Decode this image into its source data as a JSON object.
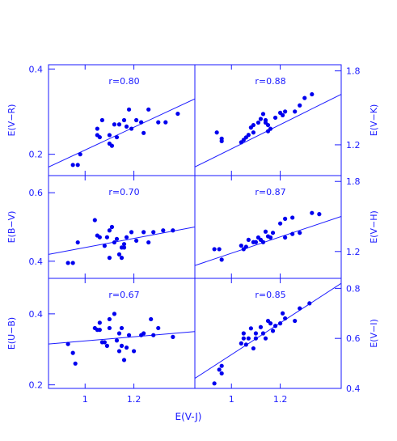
{
  "colors": {
    "axis": "#1a1aff",
    "marker": "#0000ee",
    "text": "#1a1aff"
  },
  "figure": {
    "xlabel": "E(V-J)",
    "shared_x_ticks": [
      "1",
      "1.2"
    ]
  },
  "chart_data": [
    {
      "id": "vr",
      "type": "scatter",
      "ylabel": "E(V−R)",
      "annotation": "r=0.80",
      "xlim": [
        0.85,
        1.45
      ],
      "ylim": [
        0.15,
        0.41
      ],
      "yticks": [
        {
          "v": 0.2,
          "label": "0.2"
        },
        {
          "v": 0.4,
          "label": "0.4"
        }
      ],
      "fit": [
        [
          0.85,
          0.17
        ],
        [
          1.45,
          0.33
        ]
      ],
      "points": [
        [
          0.95,
          0.175
        ],
        [
          0.97,
          0.175
        ],
        [
          0.98,
          0.2
        ],
        [
          1.05,
          0.26
        ],
        [
          1.05,
          0.245
        ],
        [
          1.06,
          0.24
        ],
        [
          1.07,
          0.28
        ],
        [
          1.1,
          0.245
        ],
        [
          1.1,
          0.225
        ],
        [
          1.11,
          0.22
        ],
        [
          1.12,
          0.27
        ],
        [
          1.13,
          0.24
        ],
        [
          1.14,
          0.27
        ],
        [
          1.16,
          0.28
        ],
        [
          1.17,
          0.265
        ],
        [
          1.18,
          0.305
        ],
        [
          1.19,
          0.26
        ],
        [
          1.21,
          0.28
        ],
        [
          1.23,
          0.275
        ],
        [
          1.24,
          0.25
        ],
        [
          1.26,
          0.305
        ],
        [
          1.3,
          0.275
        ],
        [
          1.33,
          0.275
        ],
        [
          1.38,
          0.295
        ]
      ]
    },
    {
      "id": "vk",
      "type": "scatter",
      "ylabel": "E(V−K)",
      "annotation": "r=0.88",
      "xlim": [
        0.85,
        1.45
      ],
      "ylim": [
        0.95,
        1.85
      ],
      "yticks": [
        {
          "v": 1.2,
          "label": "1.2"
        },
        {
          "v": 1.8,
          "label": "1.8"
        }
      ],
      "fit": [
        [
          0.85,
          1.02
        ],
        [
          1.45,
          1.61
        ]
      ],
      "points": [
        [
          0.94,
          1.3
        ],
        [
          0.96,
          1.25
        ],
        [
          0.96,
          1.23
        ],
        [
          1.04,
          1.22
        ],
        [
          1.05,
          1.24
        ],
        [
          1.06,
          1.26
        ],
        [
          1.07,
          1.28
        ],
        [
          1.08,
          1.34
        ],
        [
          1.09,
          1.36
        ],
        [
          1.09,
          1.3
        ],
        [
          1.11,
          1.38
        ],
        [
          1.12,
          1.41
        ],
        [
          1.13,
          1.45
        ],
        [
          1.14,
          1.4
        ],
        [
          1.14,
          1.38
        ],
        [
          1.15,
          1.36
        ],
        [
          1.15,
          1.31
        ],
        [
          1.16,
          1.33
        ],
        [
          1.18,
          1.42
        ],
        [
          1.2,
          1.46
        ],
        [
          1.21,
          1.44
        ],
        [
          1.22,
          1.47
        ],
        [
          1.26,
          1.47
        ],
        [
          1.28,
          1.52
        ],
        [
          1.3,
          1.58
        ],
        [
          1.33,
          1.61
        ]
      ]
    },
    {
      "id": "bv",
      "type": "scatter",
      "ylabel": "E(B−V)",
      "annotation": "r=0.70",
      "xlim": [
        0.85,
        1.45
      ],
      "ylim": [
        0.35,
        0.65
      ],
      "yticks": [
        {
          "v": 0.4,
          "label": "0.4"
        },
        {
          "v": 0.6,
          "label": "0.6"
        }
      ],
      "fit": [
        [
          0.85,
          0.42
        ],
        [
          1.45,
          0.5
        ]
      ],
      "points": [
        [
          0.93,
          0.395
        ],
        [
          0.95,
          0.395
        ],
        [
          0.97,
          0.455
        ],
        [
          1.04,
          0.52
        ],
        [
          1.05,
          0.475
        ],
        [
          1.06,
          0.47
        ],
        [
          1.08,
          0.445
        ],
        [
          1.09,
          0.47
        ],
        [
          1.1,
          0.49
        ],
        [
          1.1,
          0.41
        ],
        [
          1.11,
          0.5
        ],
        [
          1.12,
          0.455
        ],
        [
          1.13,
          0.465
        ],
        [
          1.14,
          0.42
        ],
        [
          1.15,
          0.44
        ],
        [
          1.15,
          0.41
        ],
        [
          1.16,
          0.45
        ],
        [
          1.16,
          0.44
        ],
        [
          1.17,
          0.47
        ],
        [
          1.19,
          0.485
        ],
        [
          1.21,
          0.46
        ],
        [
          1.24,
          0.485
        ],
        [
          1.26,
          0.455
        ],
        [
          1.28,
          0.485
        ],
        [
          1.32,
          0.49
        ],
        [
          1.36,
          0.49
        ]
      ]
    },
    {
      "id": "vh",
      "type": "scatter",
      "ylabel": "E(V−H)",
      "annotation": "r=0.87",
      "xlim": [
        0.85,
        1.45
      ],
      "ylim": [
        0.97,
        1.85
      ],
      "yticks": [
        {
          "v": 1.2,
          "label": "1.2"
        },
        {
          "v": 1.8,
          "label": "1.8"
        }
      ],
      "fit": [
        [
          0.85,
          1.08
        ],
        [
          1.45,
          1.5
        ]
      ],
      "points": [
        [
          0.93,
          1.22
        ],
        [
          0.95,
          1.22
        ],
        [
          0.96,
          1.13
        ],
        [
          1.04,
          1.25
        ],
        [
          1.05,
          1.22
        ],
        [
          1.06,
          1.24
        ],
        [
          1.07,
          1.3
        ],
        [
          1.09,
          1.28
        ],
        [
          1.1,
          1.28
        ],
        [
          1.11,
          1.32
        ],
        [
          1.12,
          1.3
        ],
        [
          1.13,
          1.28
        ],
        [
          1.14,
          1.37
        ],
        [
          1.15,
          1.33
        ],
        [
          1.16,
          1.32
        ],
        [
          1.17,
          1.36
        ],
        [
          1.2,
          1.44
        ],
        [
          1.22,
          1.48
        ],
        [
          1.22,
          1.32
        ],
        [
          1.25,
          1.35
        ],
        [
          1.25,
          1.49
        ],
        [
          1.28,
          1.36
        ],
        [
          1.33,
          1.53
        ],
        [
          1.36,
          1.52
        ]
      ]
    },
    {
      "id": "ub",
      "type": "scatter",
      "ylabel": "E(U−B)",
      "annotation": "r=0.67",
      "xlim": [
        0.85,
        1.45
      ],
      "ylim": [
        0.19,
        0.5
      ],
      "yticks": [
        {
          "v": 0.2,
          "label": "0.2"
        },
        {
          "v": 0.4,
          "label": "0.4"
        }
      ],
      "fit": [
        [
          0.85,
          0.315
        ],
        [
          1.45,
          0.35
        ]
      ],
      "points": [
        [
          0.93,
          0.315
        ],
        [
          0.95,
          0.29
        ],
        [
          0.96,
          0.26
        ],
        [
          1.04,
          0.36
        ],
        [
          1.05,
          0.355
        ],
        [
          1.06,
          0.375
        ],
        [
          1.06,
          0.355
        ],
        [
          1.07,
          0.32
        ],
        [
          1.08,
          0.32
        ],
        [
          1.09,
          0.31
        ],
        [
          1.1,
          0.36
        ],
        [
          1.1,
          0.385
        ],
        [
          1.12,
          0.4
        ],
        [
          1.13,
          0.325
        ],
        [
          1.14,
          0.345
        ],
        [
          1.14,
          0.295
        ],
        [
          1.15,
          0.36
        ],
        [
          1.15,
          0.31
        ],
        [
          1.16,
          0.27
        ],
        [
          1.17,
          0.305
        ],
        [
          1.18,
          0.34
        ],
        [
          1.2,
          0.295
        ],
        [
          1.23,
          0.34
        ],
        [
          1.24,
          0.345
        ],
        [
          1.27,
          0.385
        ],
        [
          1.28,
          0.34
        ],
        [
          1.3,
          0.36
        ],
        [
          1.36,
          0.335
        ]
      ]
    },
    {
      "id": "vi",
      "type": "scatter",
      "ylabel": "E(V−I)",
      "annotation": "r=0.85",
      "xlim": [
        0.85,
        1.45
      ],
      "ylim": [
        0.4,
        0.84
      ],
      "yticks": [
        {
          "v": 0.4,
          "label": "0.4"
        },
        {
          "v": 0.6,
          "label": "0.6"
        },
        {
          "v": 0.8,
          "label": "0.8"
        }
      ],
      "fit": [
        [
          0.85,
          0.44
        ],
        [
          1.45,
          0.82
        ]
      ],
      "points": [
        [
          0.93,
          0.42
        ],
        [
          0.95,
          0.475
        ],
        [
          0.96,
          0.46
        ],
        [
          0.96,
          0.49
        ],
        [
          1.04,
          0.58
        ],
        [
          1.05,
          0.6
        ],
        [
          1.05,
          0.62
        ],
        [
          1.06,
          0.575
        ],
        [
          1.07,
          0.6
        ],
        [
          1.08,
          0.64
        ],
        [
          1.09,
          0.56
        ],
        [
          1.1,
          0.6
        ],
        [
          1.1,
          0.62
        ],
        [
          1.12,
          0.645
        ],
        [
          1.13,
          0.62
        ],
        [
          1.14,
          0.6
        ],
        [
          1.15,
          0.67
        ],
        [
          1.16,
          0.66
        ],
        [
          1.17,
          0.63
        ],
        [
          1.18,
          0.65
        ],
        [
          1.2,
          0.66
        ],
        [
          1.21,
          0.7
        ],
        [
          1.22,
          0.68
        ],
        [
          1.26,
          0.67
        ],
        [
          1.28,
          0.72
        ],
        [
          1.32,
          0.74
        ]
      ]
    }
  ]
}
